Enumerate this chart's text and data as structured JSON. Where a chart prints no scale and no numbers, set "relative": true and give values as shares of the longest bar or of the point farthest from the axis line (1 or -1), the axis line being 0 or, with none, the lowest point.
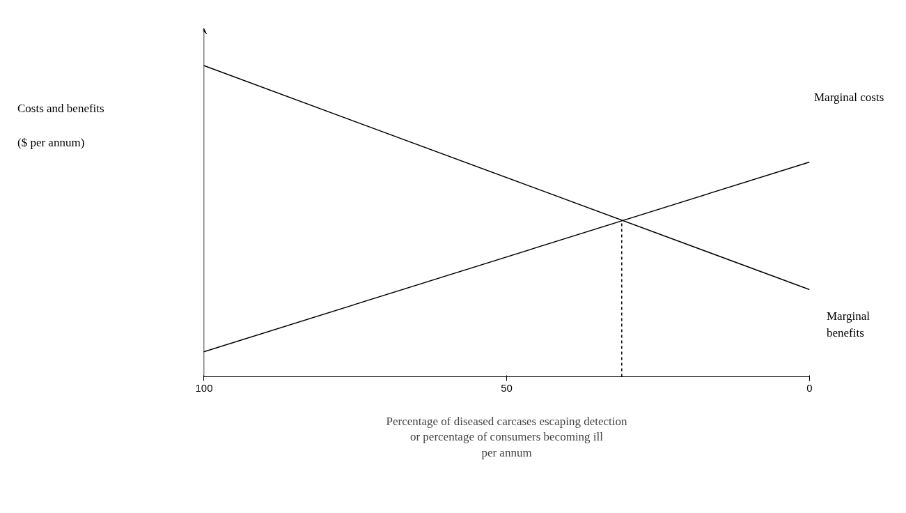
{
  "chart_data": {
    "type": "line",
    "relative": true,
    "ylabel": "Costs and benefits\n\n($ per annum)",
    "xlabel": "Percentage of diseased carcases escaping detection\nor percentage of consumers becoming ill\nper annum",
    "xlim": [
      100,
      0
    ],
    "xticks": [
      100,
      50,
      0
    ],
    "tick_labels": "x",
    "grid": false,
    "marker": "none",
    "series": [
      {
        "name": "Marginal benefits",
        "color": "#000000",
        "x": [
          100,
          0
        ],
        "values": [
          1,
          0.28
        ]
      },
      {
        "name": "Marginal costs",
        "color": "#000000",
        "x": [
          100,
          0
        ],
        "values": [
          0.08,
          0.69
        ]
      },
      {
        "color": "#000000",
        "x": [
          31,
          31
        ],
        "values": [
          0,
          0.5
        ],
        "line_style": "dashed"
      }
    ]
  }
}
